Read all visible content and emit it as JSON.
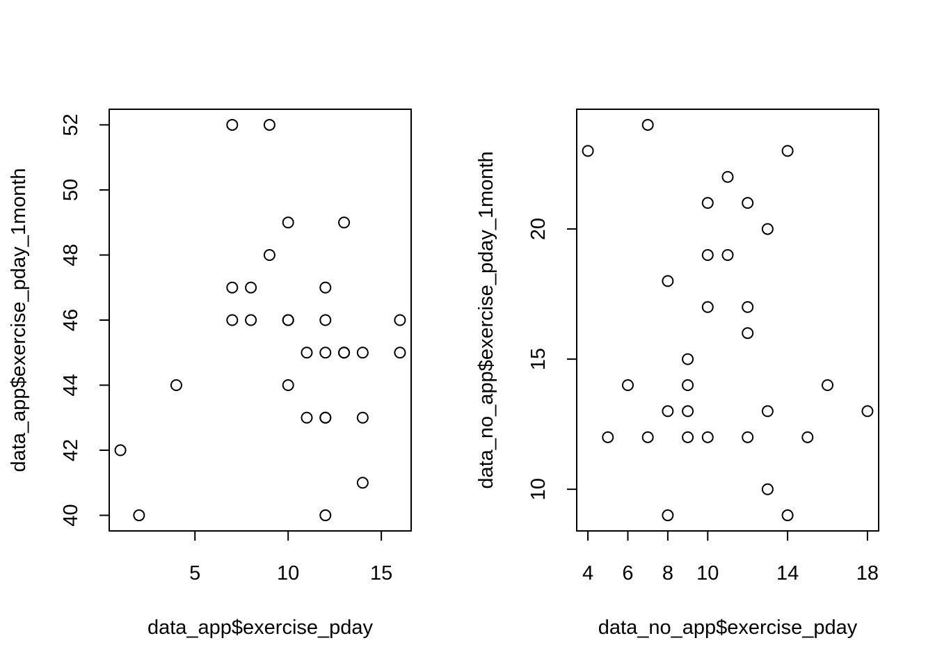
{
  "chart_data": [
    {
      "type": "scatter",
      "title": "",
      "xlabel": "data_app$exercise_pday",
      "ylabel": "data_app$exercise_pday_1month",
      "xlim": [
        0.4,
        16.6
      ],
      "ylim": [
        39.52,
        52.48
      ],
      "xticks": [
        5,
        10,
        15
      ],
      "yticks": [
        40,
        42,
        44,
        46,
        48,
        50,
        52
      ],
      "grid": false,
      "points": [
        [
          7,
          52
        ],
        [
          9,
          52
        ],
        [
          10,
          49
        ],
        [
          13,
          49
        ],
        [
          9,
          48
        ],
        [
          7,
          47
        ],
        [
          8,
          47
        ],
        [
          12,
          47
        ],
        [
          7,
          46
        ],
        [
          8,
          46
        ],
        [
          10,
          46
        ],
        [
          10,
          46
        ],
        [
          12,
          46
        ],
        [
          16,
          46
        ],
        [
          11,
          45
        ],
        [
          12,
          45
        ],
        [
          13,
          45
        ],
        [
          13,
          45
        ],
        [
          14,
          45
        ],
        [
          16,
          45
        ],
        [
          4,
          44
        ],
        [
          10,
          44
        ],
        [
          11,
          43
        ],
        [
          12,
          43
        ],
        [
          12,
          43
        ],
        [
          14,
          43
        ],
        [
          1,
          42
        ],
        [
          14,
          41
        ],
        [
          2,
          40
        ],
        [
          12,
          40
        ]
      ]
    },
    {
      "type": "scatter",
      "title": "",
      "xlabel": "data_no_app$exercise_pday",
      "ylabel": "data_no_app$exercise_pday_1month",
      "xlim": [
        3.44,
        18.56
      ],
      "ylim": [
        8.4,
        24.6
      ],
      "xticks": [
        4,
        6,
        8,
        10,
        14,
        18
      ],
      "yticks": [
        10,
        15,
        20
      ],
      "grid": false,
      "points": [
        [
          7,
          24
        ],
        [
          4,
          23
        ],
        [
          14,
          23
        ],
        [
          11,
          22
        ],
        [
          10,
          21
        ],
        [
          12,
          21
        ],
        [
          13,
          20
        ],
        [
          10,
          19
        ],
        [
          11,
          19
        ],
        [
          8,
          18
        ],
        [
          10,
          17
        ],
        [
          12,
          17
        ],
        [
          12,
          16
        ],
        [
          9,
          15
        ],
        [
          6,
          14
        ],
        [
          9,
          14
        ],
        [
          16,
          14
        ],
        [
          8,
          13
        ],
        [
          9,
          13
        ],
        [
          13,
          13
        ],
        [
          18,
          13
        ],
        [
          5,
          12
        ],
        [
          7,
          12
        ],
        [
          9,
          12
        ],
        [
          10,
          12
        ],
        [
          12,
          12
        ],
        [
          15,
          12
        ],
        [
          13,
          10
        ],
        [
          8,
          9
        ],
        [
          14,
          9
        ]
      ]
    }
  ]
}
